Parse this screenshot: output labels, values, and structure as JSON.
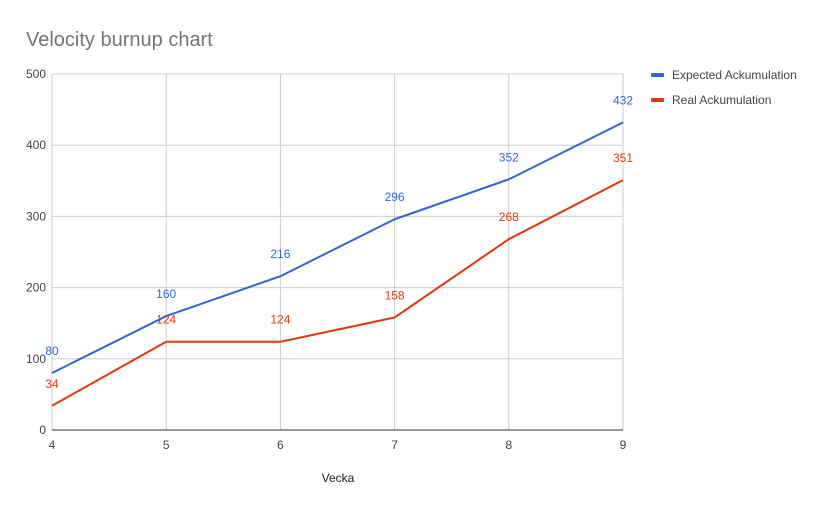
{
  "chart_data": {
    "type": "line",
    "title": "Velocity burnup chart",
    "xlabel": "Vecka",
    "ylabel": "",
    "x": [
      4,
      5,
      6,
      7,
      8,
      9
    ],
    "ylim": [
      0,
      500
    ],
    "yticks": [
      0,
      100,
      200,
      300,
      400,
      500
    ],
    "grid": true,
    "legend_position": "right",
    "series": [
      {
        "name": "Expected Ackumulation",
        "color": "#3366cc",
        "values": [
          80,
          160,
          216,
          296,
          352,
          432
        ]
      },
      {
        "name": "Real Ackumulation",
        "color": "#dc3912",
        "values": [
          34,
          124,
          124,
          158,
          268,
          351
        ]
      }
    ]
  }
}
